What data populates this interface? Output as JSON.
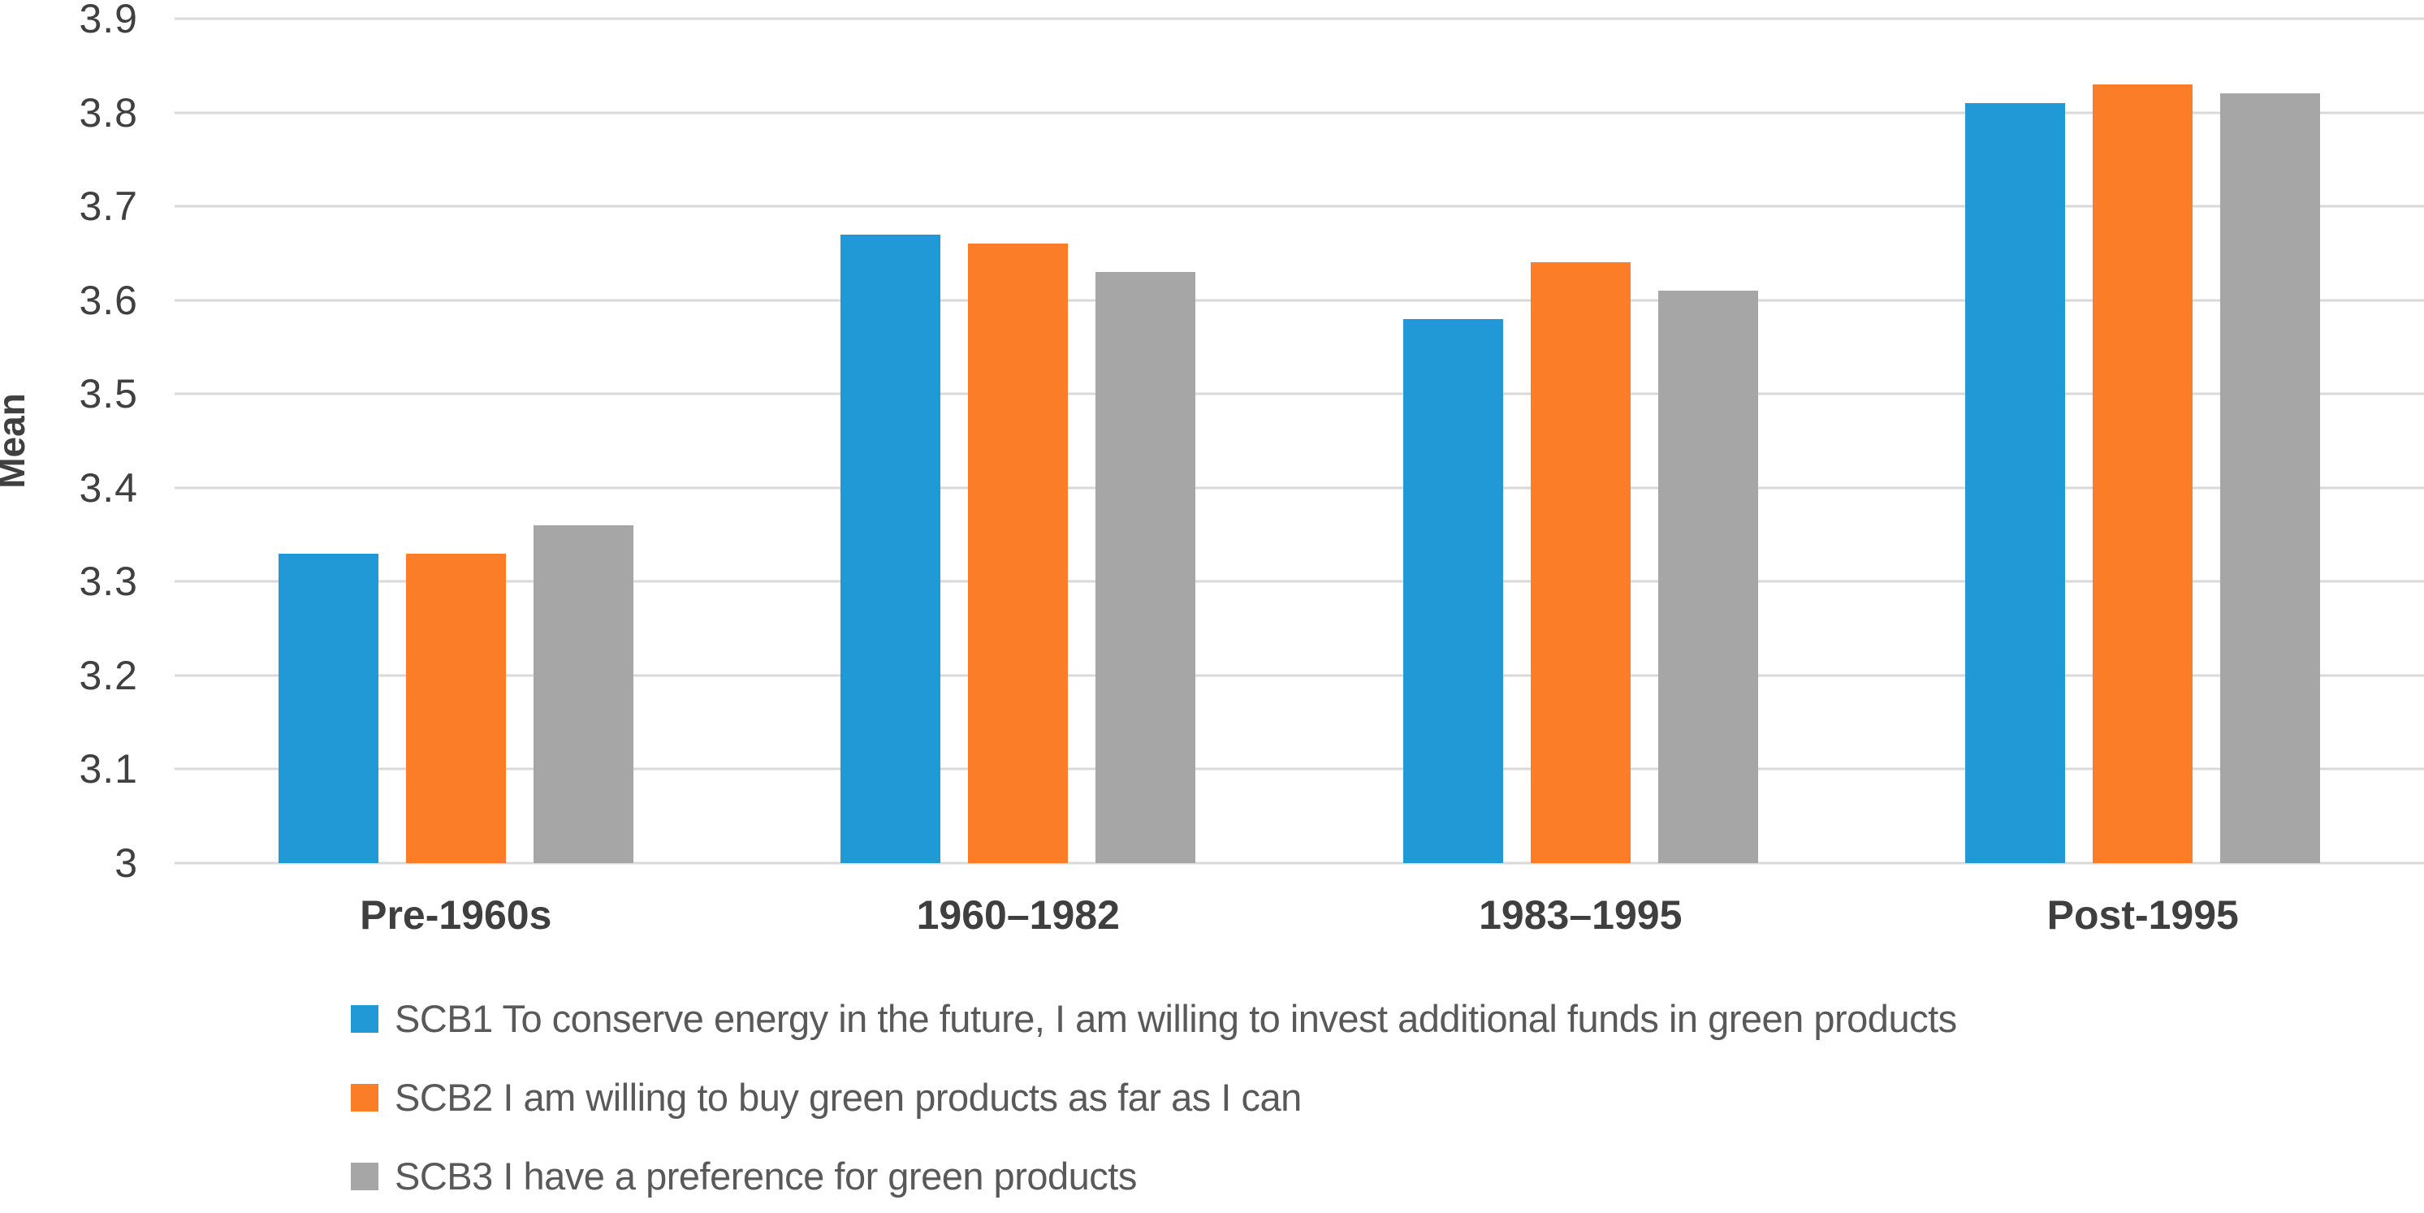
{
  "chart_data": {
    "type": "bar",
    "title": "",
    "xlabel": "",
    "ylabel": "Mean",
    "ylim": [
      3.0,
      3.9
    ],
    "ytick_step": 0.1,
    "ytick_labels": [
      "3.9",
      "3.8",
      "3.7",
      "3.6",
      "3.5",
      "3.4",
      "3.3",
      "3.2",
      "3.1",
      "3"
    ],
    "grid": true,
    "gridline_color": "#d9d9d9",
    "background_color": "#ffffff",
    "legend_position": "bottom-left",
    "categories": [
      "Pre-1960s",
      "1960–1982",
      "1983–1995",
      "Post-1995"
    ],
    "series": [
      {
        "name": "SCB1 To conserve energy in the future, I am willing to invest additional funds in green products",
        "color": "#2199d6",
        "values": [
          3.33,
          3.67,
          3.58,
          3.81
        ]
      },
      {
        "name": "SCB2 I am willing to buy green products as far as I can",
        "color": "#fc7d27",
        "values": [
          3.33,
          3.66,
          3.64,
          3.83
        ]
      },
      {
        "name": "SCB3 I have a preference for green products",
        "color": "#a6a6a6",
        "values": [
          3.36,
          3.63,
          3.61,
          3.82
        ]
      }
    ]
  }
}
